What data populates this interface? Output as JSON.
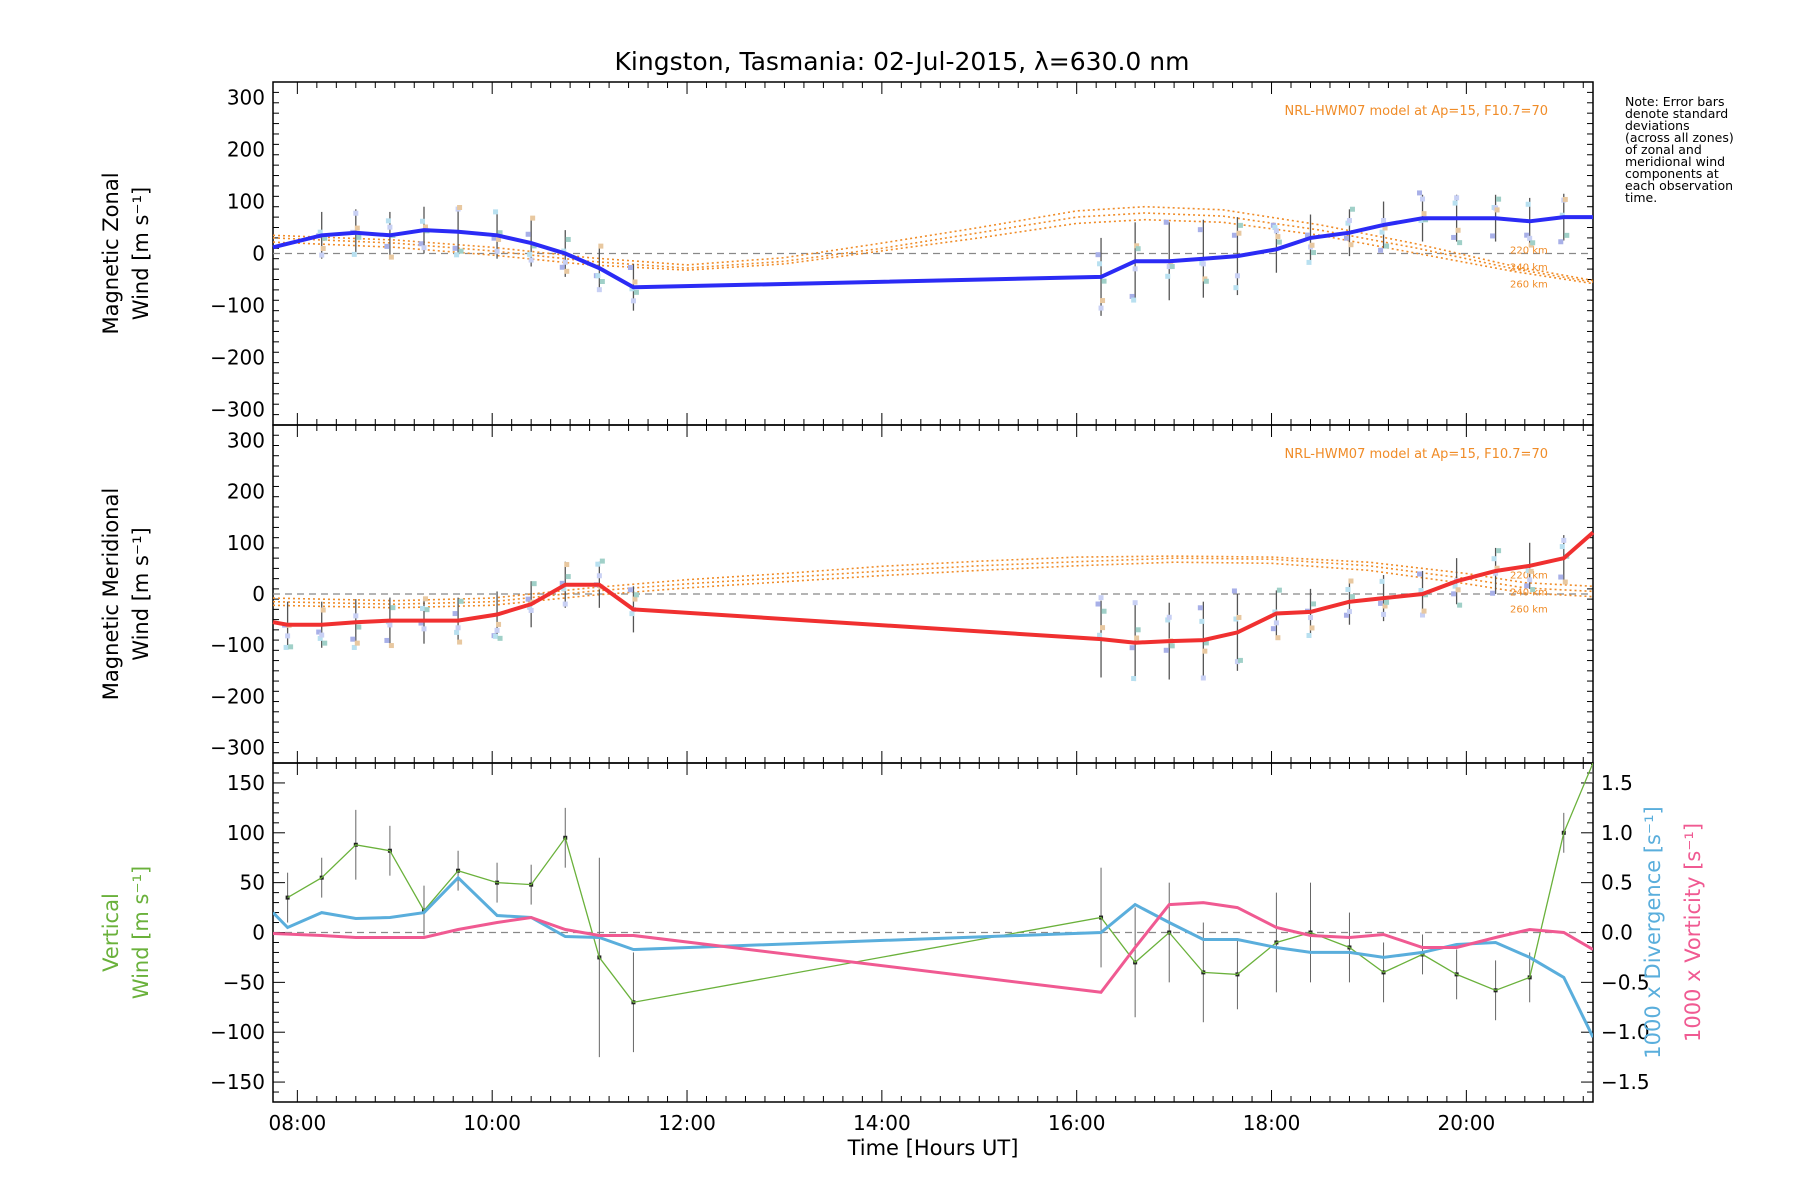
{
  "title": "Kingston, Tasmania: 02-Jul-2015, λ=630.0 nm",
  "note": "Note: Error bars\ndenote standard\ndeviations\n(across all zones)\nof zonal and\nmeridional wind\ncomponents at\neach observation\ntime.",
  "colors": {
    "zonal": "#2b2bf5",
    "meridional": "#f03030",
    "vertical": "#6ab13b",
    "divergence": "#5aaedc",
    "vorticity": "#f05a92",
    "model": "#f08c28",
    "errbar": "#6b6b6b"
  },
  "chart_data": [
    {
      "type": "line",
      "panel": "zonal",
      "ylabel": [
        "Magnetic Zonal",
        "Wind [m s⁻¹]"
      ],
      "ylim": [
        -330,
        330
      ],
      "yticks": [
        -300,
        -200,
        -100,
        0,
        100,
        200,
        300
      ],
      "xlim": [
        7.75,
        21.3
      ],
      "model_label": "NRL-HWM07 model at Ap=15, F10.7=70",
      "model_heights": [
        "220 km",
        "240 km",
        "260 km"
      ],
      "series": [
        {
          "x": [
            7.75,
            8.25,
            8.6,
            8.95,
            9.3,
            9.65,
            10.05,
            10.4,
            10.75,
            11.1,
            11.45,
            16.25,
            16.6,
            16.95,
            17.3,
            17.65,
            18.05,
            18.4,
            18.8,
            19.15,
            19.55,
            19.9,
            20.3,
            20.65,
            21.0,
            21.3
          ],
          "values": [
            12,
            35,
            40,
            35,
            45,
            42,
            35,
            20,
            0,
            -28,
            -65,
            -45,
            -15,
            -15,
            -10,
            -5,
            8,
            30,
            40,
            55,
            68,
            68,
            68,
            62,
            70,
            70
          ]
        }
      ],
      "models": [
        {
          "x": [
            7.75,
            9,
            10,
            11,
            12,
            13,
            14,
            15,
            16,
            16.7,
            17.5,
            18.5,
            19.5,
            20.5,
            21.3
          ],
          "values": [
            30,
            20,
            5,
            -15,
            -28,
            -15,
            10,
            40,
            70,
            78,
            72,
            45,
            10,
            -30,
            -55
          ]
        },
        {
          "x": [
            7.75,
            9,
            10,
            11,
            12,
            13,
            14,
            15,
            16,
            16.7,
            17.5,
            18.5,
            19.5,
            20.5,
            21.3
          ],
          "values": [
            22,
            12,
            -3,
            -22,
            -32,
            -20,
            5,
            30,
            58,
            65,
            60,
            35,
            0,
            -35,
            -58
          ]
        },
        {
          "x": [
            7.75,
            9,
            10,
            11,
            12,
            13,
            14,
            15,
            16,
            16.7,
            17.5,
            18.5,
            19.5,
            20.5,
            21.3
          ],
          "values": [
            35,
            26,
            12,
            -8,
            -22,
            -8,
            20,
            50,
            82,
            90,
            84,
            55,
            18,
            -25,
            -52
          ]
        }
      ]
    },
    {
      "type": "line",
      "panel": "meridional",
      "ylabel": [
        "Magnetic Meridional",
        "Wind [m s⁻¹]"
      ],
      "ylim": [
        -330,
        330
      ],
      "yticks": [
        -300,
        -200,
        -100,
        0,
        100,
        200,
        300
      ],
      "xlim": [
        7.75,
        21.3
      ],
      "model_label": "NRL-HWM07 model at Ap=15, F10.7=70",
      "model_heights": [
        "220 km",
        "240 km",
        "260 km"
      ],
      "series": [
        {
          "x": [
            7.75,
            7.9,
            8.25,
            8.6,
            8.95,
            9.3,
            9.65,
            10.05,
            10.4,
            10.75,
            11.1,
            11.45,
            16.25,
            16.6,
            16.95,
            17.3,
            17.65,
            18.05,
            18.4,
            18.8,
            19.15,
            19.55,
            19.9,
            20.3,
            20.65,
            21.0,
            21.3
          ],
          "values": [
            -55,
            -60,
            -60,
            -55,
            -52,
            -52,
            -52,
            -40,
            -20,
            18,
            18,
            -30,
            -88,
            -95,
            -92,
            -90,
            -75,
            -38,
            -35,
            -15,
            -8,
            0,
            25,
            45,
            55,
            70,
            120
          ]
        }
      ],
      "models": [
        {
          "x": [
            7.75,
            9,
            10,
            11,
            12,
            13,
            14,
            15,
            16,
            17,
            18,
            19,
            20,
            20.6,
            21.3
          ],
          "values": [
            -15,
            -20,
            -15,
            5,
            20,
            32,
            45,
            55,
            63,
            70,
            68,
            55,
            30,
            12,
            5
          ]
        },
        {
          "x": [
            7.75,
            9,
            10,
            11,
            12,
            13,
            14,
            15,
            16,
            17,
            18,
            19,
            20,
            20.6,
            21.3
          ],
          "values": [
            -22,
            -27,
            -22,
            -3,
            12,
            24,
            36,
            46,
            55,
            62,
            60,
            46,
            20,
            2,
            -5
          ]
        },
        {
          "x": [
            7.75,
            9,
            10,
            11,
            12,
            13,
            14,
            15,
            16,
            17,
            18,
            19,
            20,
            20.6,
            21.3
          ],
          "values": [
            -8,
            -13,
            -8,
            12,
            28,
            40,
            54,
            64,
            72,
            74,
            72,
            62,
            40,
            22,
            15
          ]
        }
      ]
    },
    {
      "type": "line",
      "panel": "vertical",
      "ylabel": [
        "Vertical",
        "Wind [m s⁻¹]"
      ],
      "y2label": [
        "1000 x Divergence [s⁻¹]",
        "1000 x Vorticity [s⁻¹]"
      ],
      "ylim": [
        -170,
        170
      ],
      "yticks": [
        -150,
        -100,
        -50,
        0,
        50,
        100,
        150
      ],
      "y2lim": [
        -1.7,
        1.7
      ],
      "y2ticks": [
        -1.5,
        -1.0,
        -0.5,
        0.0,
        0.5,
        1.0,
        1.5
      ],
      "xlabel": "Time [Hours UT]",
      "xlim": [
        7.75,
        21.3
      ],
      "xticks": [
        "08:00",
        "10:00",
        "12:00",
        "14:00",
        "16:00",
        "18:00",
        "20:00"
      ],
      "xtick_values": [
        8,
        10,
        12,
        14,
        16,
        18,
        20
      ],
      "series": [
        {
          "name": "Vertical Wind",
          "x": [
            7.9,
            8.25,
            8.6,
            8.95,
            9.3,
            9.65,
            10.05,
            10.4,
            10.75,
            11.1,
            11.45,
            16.25,
            16.6,
            16.95,
            17.3,
            17.65,
            18.05,
            18.4,
            18.8,
            19.15,
            19.55,
            19.9,
            20.3,
            20.65,
            21.0,
            21.3
          ],
          "values": [
            35,
            55,
            88,
            82,
            22,
            62,
            50,
            48,
            95,
            -25,
            -70,
            15,
            -30,
            0,
            -40,
            -42,
            -10,
            0,
            -15,
            -40,
            -22,
            -42,
            -58,
            -45,
            100,
            170
          ],
          "errors": [
            25,
            20,
            35,
            25,
            25,
            20,
            20,
            20,
            30,
            100,
            50,
            50,
            55,
            50,
            50,
            35,
            50,
            50,
            35,
            30,
            20,
            25,
            30,
            25,
            20,
            20
          ]
        },
        {
          "name": "1000 x Divergence",
          "axis": "right",
          "x": [
            7.75,
            7.9,
            8.25,
            8.6,
            8.95,
            9.3,
            9.65,
            10.05,
            10.4,
            10.75,
            11.1,
            11.45,
            16.25,
            16.6,
            16.95,
            17.3,
            17.65,
            18.05,
            18.4,
            18.8,
            19.15,
            19.55,
            19.9,
            20.3,
            20.65,
            21.0,
            21.3
          ],
          "values": [
            0.2,
            0.05,
            0.2,
            0.14,
            0.15,
            0.2,
            0.55,
            0.17,
            0.15,
            -0.04,
            -0.05,
            -0.17,
            0.0,
            0.28,
            0.1,
            -0.07,
            -0.07,
            -0.15,
            -0.2,
            -0.2,
            -0.25,
            -0.2,
            -0.12,
            -0.1,
            -0.25,
            -0.45,
            -1.05
          ]
        },
        {
          "name": "1000 x Vorticity",
          "axis": "right",
          "x": [
            7.75,
            8.25,
            8.6,
            8.95,
            9.3,
            9.65,
            10.05,
            10.4,
            10.75,
            11.1,
            11.45,
            16.25,
            16.6,
            16.95,
            17.3,
            17.65,
            18.05,
            18.4,
            18.8,
            19.15,
            19.55,
            19.9,
            20.3,
            20.65,
            21.0,
            21.3
          ],
          "values": [
            -0.01,
            -0.03,
            -0.05,
            -0.05,
            -0.05,
            0.03,
            0.1,
            0.15,
            0.03,
            -0.03,
            -0.03,
            -0.6,
            -0.15,
            0.28,
            0.3,
            0.25,
            0.05,
            -0.03,
            -0.05,
            -0.02,
            -0.15,
            -0.15,
            -0.05,
            0.03,
            0.0,
            -0.17
          ]
        }
      ]
    }
  ]
}
